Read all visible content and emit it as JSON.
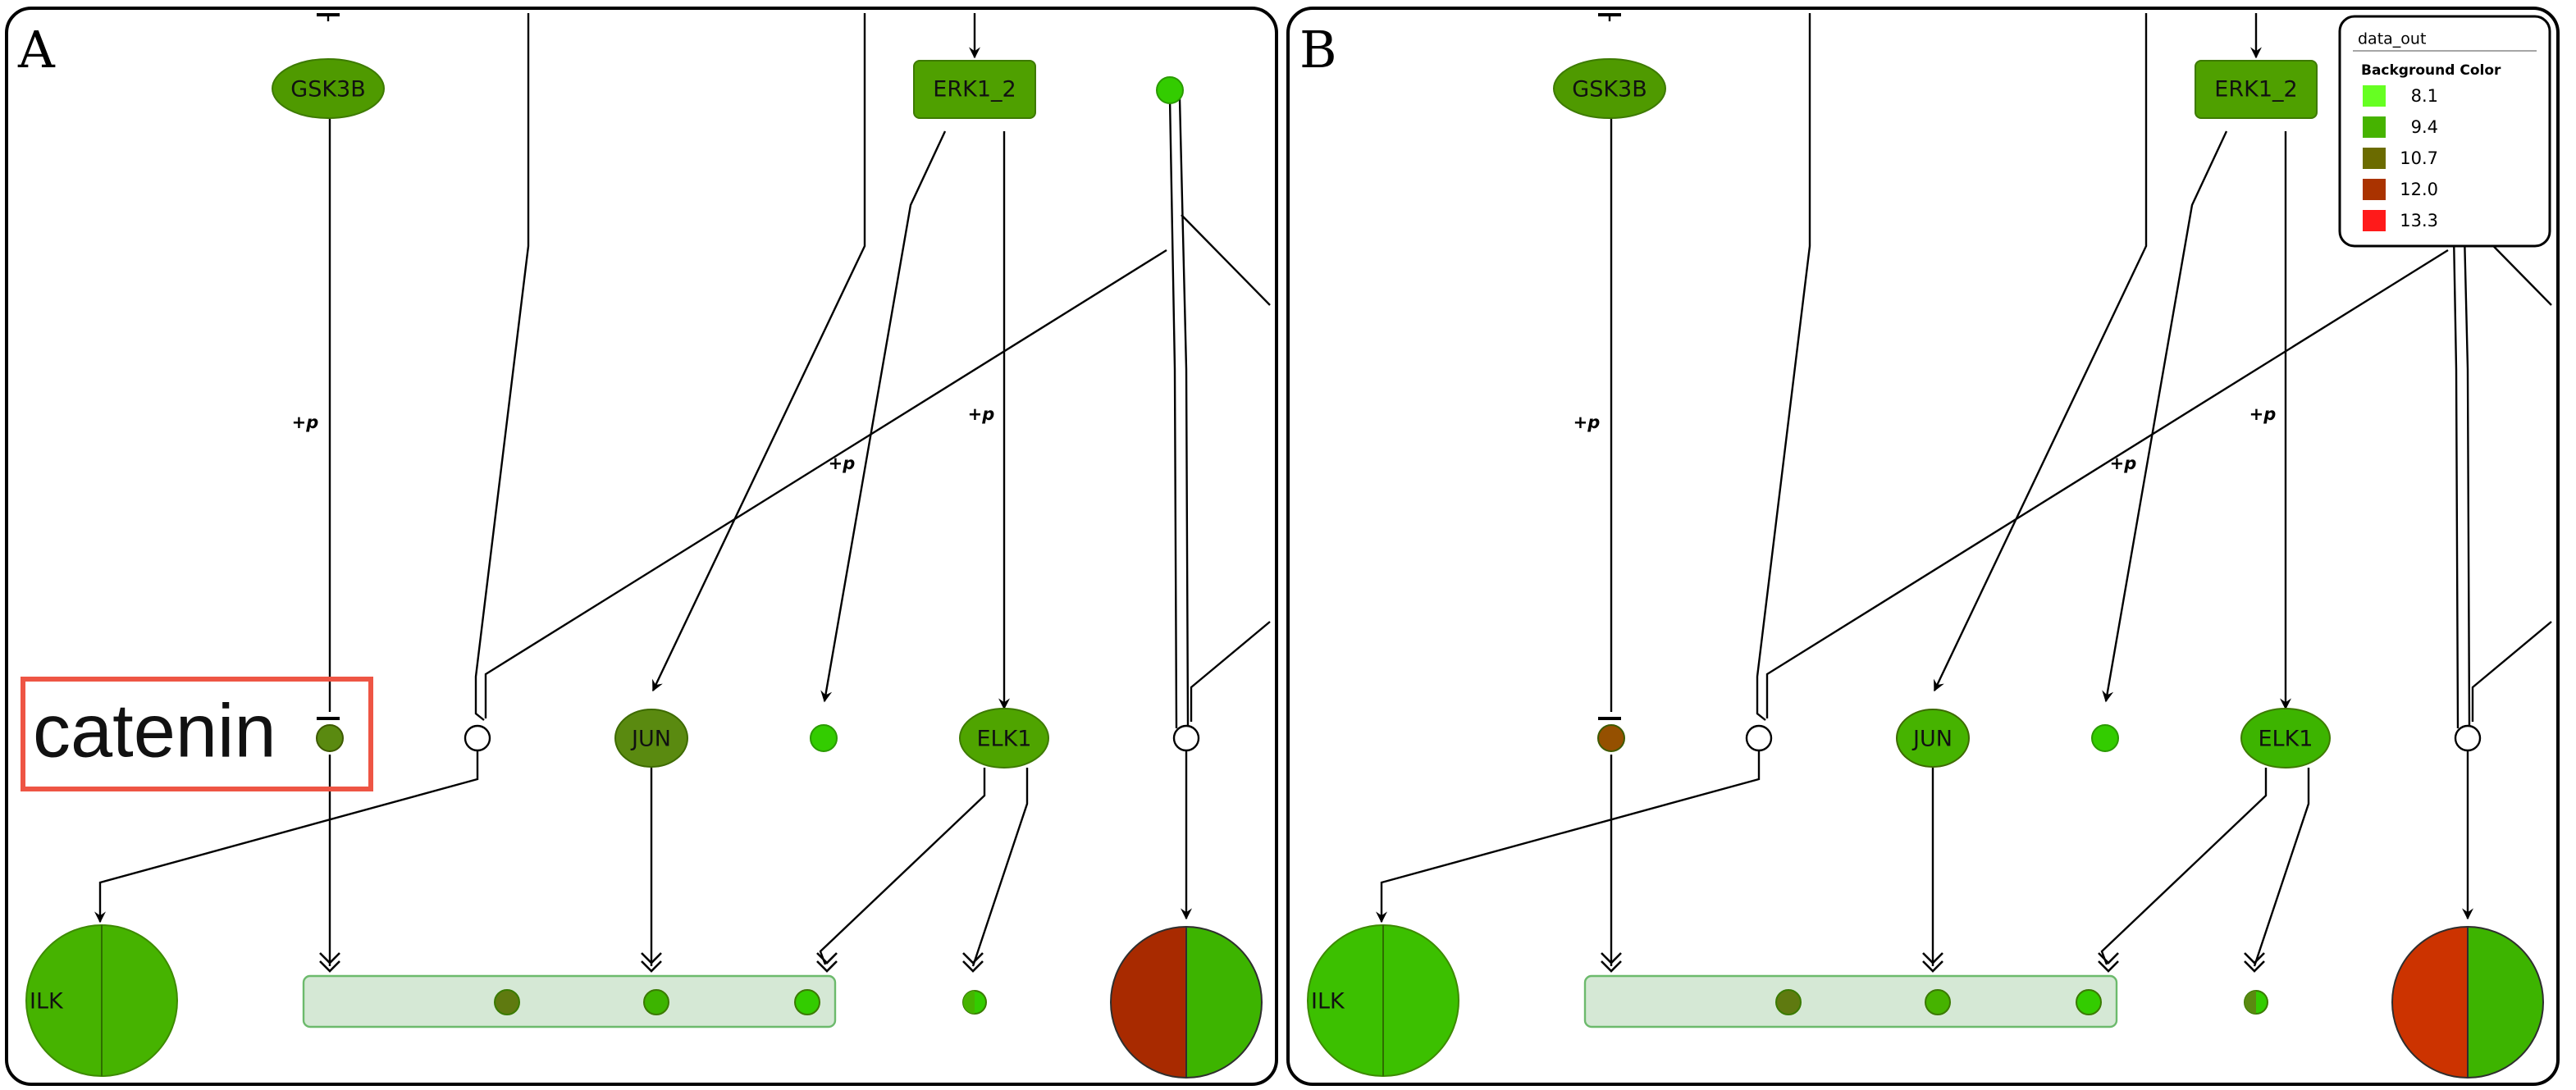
{
  "panels": [
    {
      "letter": "A",
      "node_colors": {
        "gsk3b": "#4f9a00",
        "erk": "#4fa000",
        "top_dot": "#33cc00",
        "catenin_dot": "#5a8a10",
        "jun": "#5a8a10",
        "mid_dot": "#33cc00",
        "elk1": "#4fa400",
        "ilk": "#46b300",
        "complex": [
          "#5f7a10",
          "#3db400",
          "#33cc00"
        ],
        "small_complex": [
          "#46b300",
          "#33cc00"
        ],
        "pie": [
          "#a82a00",
          "#3db400"
        ]
      },
      "callout_text": "catenin",
      "legend": null
    },
    {
      "letter": "B",
      "node_colors": {
        "gsk3b": "#4f9a00",
        "erk": "#4fa000",
        "top_dot": null,
        "catenin_dot": "#955000",
        "jun": "#46b300",
        "mid_dot": "#33cc00",
        "elk1": "#3db400",
        "ilk": "#3cc000",
        "complex": [
          "#5f7a10",
          "#46b300",
          "#33cc00"
        ],
        "small_complex": [
          "#5a8a10",
          "#33cc00"
        ],
        "pie": [
          "#cc3300",
          "#3db400"
        ]
      },
      "callout_text": null,
      "legend": {
        "title": "data_out",
        "subtitle": "Background Color",
        "entries": [
          {
            "value": "8.1",
            "color": "#66ff22"
          },
          {
            "value": "9.4",
            "color": "#46b300"
          },
          {
            "value": "10.7",
            "color": "#6b6b00"
          },
          {
            "value": "12.0",
            "color": "#aa3300"
          },
          {
            "value": "13.3",
            "color": "#ff1a1a"
          }
        ]
      }
    }
  ],
  "nodes": {
    "gsk3b": "GSK3B",
    "erk": "ERK1_2",
    "jun": "JUN",
    "elk1": "ELK1",
    "ilk": "ILK"
  },
  "annotations": {
    "phospho": "+p"
  }
}
